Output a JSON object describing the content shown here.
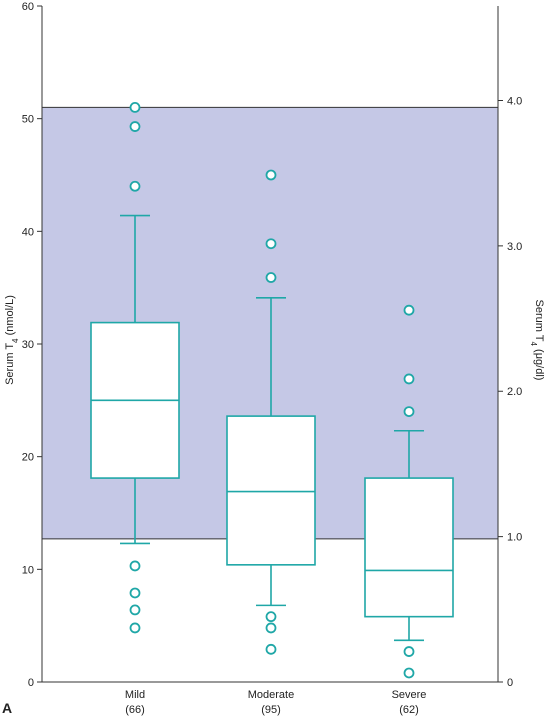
{
  "colors": {
    "box": "#1fa7a7",
    "band": "#c5c8e6",
    "axis": "#333333"
  },
  "panel_label": "A",
  "chart_data": {
    "type": "box",
    "ylabel_left": {
      "prefix": "Serum T",
      "sub": "4",
      "suffix": " (nmol/L)"
    },
    "ylabel_right": {
      "prefix": "Serum T",
      "sub": "4",
      "suffix": " (μg/dl)"
    },
    "left_axis": {
      "ylim": [
        0,
        60
      ],
      "ticks": [
        "0",
        "10",
        "20",
        "30",
        "40",
        "50",
        "60"
      ]
    },
    "right_axis": {
      "ylim": [
        0,
        4.65
      ],
      "ticks": [
        {
          "value": 0,
          "label": "0"
        },
        {
          "value": 1.0,
          "label": "1.0"
        },
        {
          "value": 2.0,
          "label": "2.0"
        },
        {
          "value": 3.0,
          "label": "3.0"
        },
        {
          "value": 4.0,
          "label": "4.0"
        }
      ]
    },
    "reference_range": {
      "low": 12.7,
      "high": 51.0,
      "units": "nmol/L"
    },
    "categories": [
      {
        "name": "Mild",
        "n": "(66)",
        "whisker_low": 12.3,
        "q1": 18.1,
        "median": 25.0,
        "q3": 31.9,
        "whisker_high": 41.4,
        "outliers": [
          51.0,
          49.3,
          44.0,
          10.3,
          7.9,
          6.4,
          4.8
        ]
      },
      {
        "name": "Moderate",
        "n": "(95)",
        "whisker_low": 6.8,
        "q1": 10.4,
        "median": 16.9,
        "q3": 23.6,
        "whisker_high": 34.1,
        "outliers": [
          45.0,
          38.9,
          35.9,
          5.8,
          4.8,
          2.9
        ]
      },
      {
        "name": "Severe",
        "n": "(62)",
        "whisker_low": 3.7,
        "q1": 5.8,
        "median": 9.9,
        "q3": 18.1,
        "whisker_high": 22.3,
        "outliers": [
          33.0,
          26.9,
          24.0,
          2.7,
          0.8
        ]
      }
    ]
  }
}
